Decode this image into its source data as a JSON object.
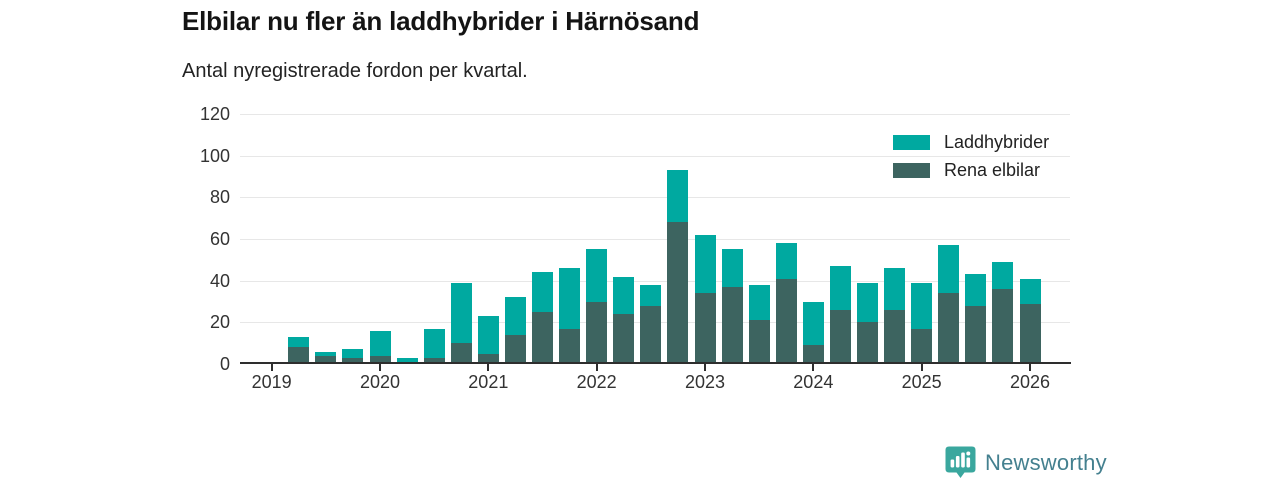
{
  "header": {
    "title": "Elbilar nu fler än laddhybrider i Härnösand",
    "subtitle": "Antal nyregistrerade fordon per kvartal."
  },
  "chart_data": {
    "type": "bar",
    "stacked": true,
    "title": "Elbilar nu fler än laddhybrider i Härnösand",
    "subtitle": "Antal nyregistrerade fordon per kvartal.",
    "categories": [
      "2019 Q1",
      "2019 Q2",
      "2019 Q3",
      "2019 Q4",
      "2020 Q1",
      "2020 Q2",
      "2020 Q3",
      "2020 Q4",
      "2021 Q1",
      "2021 Q2",
      "2021 Q3",
      "2021 Q4",
      "2022 Q1",
      "2022 Q2",
      "2022 Q3",
      "2022 Q4",
      "2023 Q1",
      "2023 Q2",
      "2023 Q3",
      "2023 Q4",
      "2024 Q1",
      "2024 Q2",
      "2024 Q3",
      "2024 Q4",
      "2025 Q1",
      "2025 Q2",
      "2025 Q3",
      "2025 Q4",
      "2026 Q1"
    ],
    "series": [
      {
        "name": "Laddhybrider",
        "color": "#00a9a0",
        "values": [
          0,
          5,
          2,
          4,
          12,
          2,
          14,
          29,
          18,
          18,
          19,
          29,
          25,
          18,
          10,
          25,
          28,
          18,
          17,
          17,
          21,
          21,
          19,
          20,
          22,
          23,
          15,
          13,
          12
        ]
      },
      {
        "name": "Rena elbilar",
        "color": "#3d6460",
        "values": [
          0,
          8,
          4,
          3,
          4,
          1,
          3,
          10,
          5,
          14,
          25,
          17,
          30,
          24,
          28,
          68,
          34,
          37,
          21,
          41,
          9,
          26,
          20,
          26,
          17,
          34,
          28,
          36,
          29
        ]
      }
    ],
    "stack_order_bottom_first": [
      "Rena elbilar",
      "Laddhybrider"
    ],
    "ylim": [
      0,
      120
    ],
    "yticks": [
      0,
      20,
      40,
      60,
      80,
      100,
      120
    ],
    "xticks": [
      "2019",
      "2020",
      "2021",
      "2022",
      "2023",
      "2024",
      "2025",
      "2026"
    ],
    "grid": true,
    "legend_position": "top-right"
  },
  "legend": {
    "items": [
      {
        "label": "Laddhybrider",
        "color": "#00a9a0"
      },
      {
        "label": "Rena elbilar",
        "color": "#3d6460"
      }
    ]
  },
  "footer": {
    "brand": "Newsworthy"
  },
  "colors": {
    "accent_teal": "#00a9a0",
    "accent_dark": "#3d6460",
    "logo_icon": "#3aa79e",
    "logo_text": "#44808f",
    "axis_text": "#333333",
    "gridline": "#e7e7e7",
    "axis_line": "#2e2e2e"
  }
}
